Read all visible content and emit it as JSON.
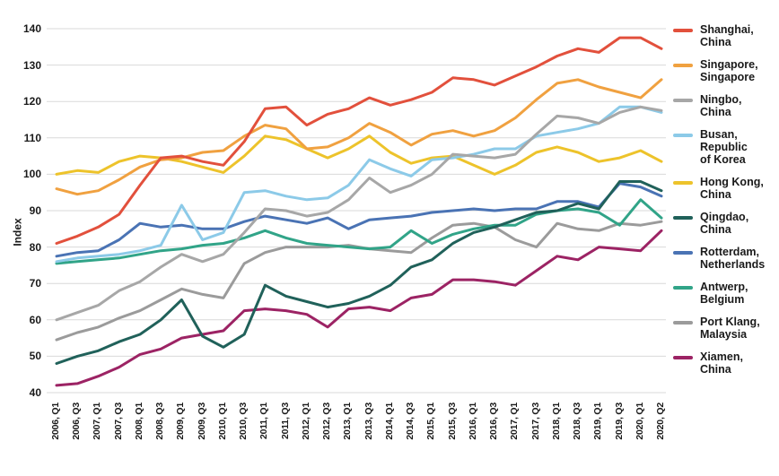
{
  "chart_data": {
    "type": "line",
    "title": "",
    "xlabel": "",
    "ylabel": "Index",
    "ylim": [
      40,
      140
    ],
    "yticks": [
      40,
      50,
      60,
      70,
      80,
      90,
      100,
      110,
      120,
      130,
      140
    ],
    "grid": "horizontal",
    "legend_position": "right",
    "x_labels": [
      "2006, Q1",
      "2006, Q3",
      "2007, Q1",
      "2007, Q3",
      "2008, Q1",
      "2008, Q3",
      "2009, Q1",
      "2009, Q3",
      "2010, Q1",
      "2010, Q3",
      "2011, Q1",
      "2011, Q3",
      "2012, Q1",
      "2012, Q3",
      "2013, Q1",
      "2013, Q3",
      "2014, Q1",
      "2014, Q3",
      "2015, Q1",
      "2015, Q3",
      "2016, Q1",
      "2016, Q3",
      "2017, Q1",
      "2017, Q3",
      "2018, Q1",
      "2018, Q3",
      "2019, Q1",
      "2019, Q3",
      "2020, Q1",
      "2020, Q2"
    ],
    "series": [
      {
        "id": "shanghai",
        "name": "Shanghai, China",
        "label_lines": [
          "Shanghai,",
          "China"
        ],
        "color": "#e2503c",
        "values": [
          81,
          83,
          85.5,
          89,
          97,
          104.5,
          105,
          103.5,
          102.5,
          109,
          118,
          118.5,
          113.5,
          116.5,
          118,
          121,
          119,
          120.5,
          122.5,
          126.5,
          126,
          124.5,
          127,
          129.5,
          132.5,
          134.5,
          133.5,
          137.5,
          137.5,
          134.5
        ]
      },
      {
        "id": "singapore",
        "name": "Singapore, Singapore",
        "label_lines": [
          "Singapore,",
          "Singapore"
        ],
        "color": "#f0a140",
        "values": [
          96,
          94.5,
          95.5,
          98.5,
          102,
          104,
          104.5,
          106,
          106.5,
          110.5,
          113.5,
          112.5,
          107,
          107.5,
          110,
          114,
          111.5,
          108,
          111,
          112,
          110.5,
          112,
          115.5,
          120.5,
          125,
          126,
          124,
          122.5,
          121,
          126
        ]
      },
      {
        "id": "ningbo",
        "name": "Ningbo, China",
        "label_lines": [
          "Ningbo,",
          "China"
        ],
        "color": "#a7a7a7",
        "values": [
          60,
          62,
          64,
          68,
          70.5,
          74.5,
          78,
          76,
          78,
          84,
          90.5,
          90,
          88.5,
          89.5,
          93,
          99,
          95,
          97,
          100,
          105.5,
          105,
          104.5,
          105.5,
          111,
          116,
          115.5,
          114,
          117,
          118.5,
          117.5
        ]
      },
      {
        "id": "busan",
        "name": "Busan, Republic of Korea",
        "label_lines": [
          "Busan,",
          "Republic",
          "of Korea"
        ],
        "color": "#8ccae8",
        "values": [
          76,
          77,
          77.5,
          78,
          79,
          80.5,
          91.5,
          82,
          84,
          95,
          95.5,
          94,
          93,
          93.5,
          97,
          104,
          101.5,
          99.5,
          104,
          104.5,
          105.5,
          107,
          107,
          110.5,
          111.5,
          112.5,
          114,
          118.5,
          118.5,
          117
        ]
      },
      {
        "id": "hongkong",
        "name": "Hong Kong, China",
        "label_lines": [
          "Hong Kong,",
          "China"
        ],
        "color": "#edc32b",
        "values": [
          100,
          101,
          100.5,
          103.5,
          105,
          104.5,
          103.5,
          102,
          100.5,
          105,
          110.5,
          109.5,
          107,
          104.5,
          107,
          110.5,
          106,
          103,
          104.5,
          105,
          102.5,
          100,
          102.5,
          106,
          107.5,
          106,
          103.5,
          104.5,
          106.5,
          103.5
        ]
      },
      {
        "id": "qingdao",
        "name": "Qingdao, China",
        "label_lines": [
          "Qingdao,",
          "China"
        ],
        "color": "#20615a",
        "values": [
          48,
          50,
          51.5,
          54,
          56,
          60,
          65.5,
          55.5,
          52.5,
          56,
          69.5,
          66.5,
          65,
          63.5,
          64.5,
          66.5,
          69.5,
          74.5,
          76.5,
          81,
          84,
          85.5,
          87.5,
          89.5,
          90,
          92,
          90.5,
          98,
          98,
          95.5
        ]
      },
      {
        "id": "rotterdam",
        "name": "Rotterdam, Netherlands",
        "label_lines": [
          "Rotterdam,",
          "Netherlands"
        ],
        "color": "#4a73b4",
        "values": [
          77.5,
          78.5,
          79,
          82,
          86.5,
          85.5,
          86,
          85,
          85,
          87,
          88.5,
          87.5,
          86.5,
          88,
          85,
          87.5,
          88,
          88.5,
          89.5,
          90,
          90.5,
          90,
          90.5,
          90.5,
          92.5,
          92.5,
          91,
          97.5,
          96.5,
          94
        ]
      },
      {
        "id": "antwerp",
        "name": "Antwerp, Belgium",
        "label_lines": [
          "Antwerp,",
          "Belgium"
        ],
        "color": "#31a488",
        "values": [
          75.5,
          76,
          76.5,
          77,
          78,
          79,
          79.5,
          80.5,
          81,
          82.5,
          84.5,
          82.5,
          81,
          80.5,
          80,
          79.5,
          80,
          84.5,
          81,
          83.5,
          85,
          86,
          86,
          89,
          90,
          90.5,
          89.5,
          86,
          93,
          88
        ]
      },
      {
        "id": "portklang",
        "name": "Port Klang, Malaysia",
        "label_lines": [
          "Port Klang,",
          "Malaysia"
        ],
        "color": "#9b9b9b",
        "values": [
          54.5,
          56.5,
          58,
          60.5,
          62.5,
          65.5,
          68.5,
          67,
          66,
          75.5,
          78.5,
          80,
          80,
          80,
          80.5,
          79.5,
          79,
          78.5,
          82.5,
          86,
          86.5,
          85.5,
          82,
          80,
          86.5,
          85,
          84.5,
          86.5,
          86,
          87
        ]
      },
      {
        "id": "xiamen",
        "name": "Xiamen, China",
        "label_lines": [
          "Xiamen,",
          "China"
        ],
        "color": "#9c2364",
        "values": [
          42,
          42.5,
          44.5,
          47,
          50.5,
          52,
          55,
          56,
          57,
          62.5,
          63,
          62.5,
          61.5,
          58,
          63,
          63.5,
          62.5,
          66,
          67,
          71,
          71,
          70.5,
          69.5,
          73.5,
          77.5,
          76.5,
          80,
          79.5,
          79,
          84.5
        ]
      }
    ],
    "draw_order": [
      "xiamen",
      "portklang",
      "antwerp",
      "rotterdam",
      "qingdao",
      "hongkong",
      "busan",
      "ningbo",
      "singapore",
      "shanghai"
    ],
    "gridline_color": "#d9d9d9",
    "background_color": "#ffffff"
  }
}
